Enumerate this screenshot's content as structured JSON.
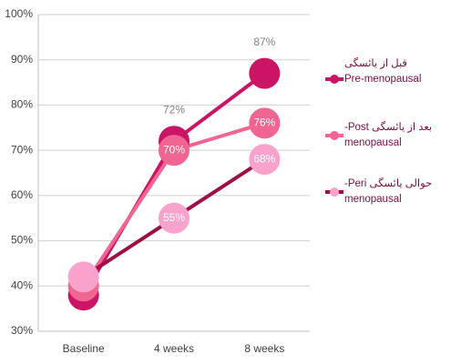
{
  "chart_data": {
    "type": "line",
    "categories": [
      "Baseline",
      "4 weeks",
      "8 weeks"
    ],
    "series": [
      {
        "name": "قبل از یائسگی\nPre-menopausal",
        "color": "#cc1466",
        "marker_color": "#cc1466",
        "values": [
          38,
          72,
          87
        ],
        "value_labels": [
          null,
          "72%",
          "87%"
        ]
      },
      {
        "name": "بعد از یائسگی Post-\nmenopausal",
        "color": "#f06592",
        "marker_color": "#f06592",
        "values": [
          40,
          70,
          76
        ],
        "value_labels": [
          null,
          "70%",
          "76%"
        ]
      },
      {
        "name": "حوالی یائسگی Peri-\nmenopausal",
        "color": "#9e0f48",
        "marker_color": "#f9a3cc",
        "values": [
          42,
          55,
          68
        ],
        "value_labels": [
          null,
          "55%",
          "68%"
        ]
      }
    ],
    "ylim": [
      30,
      100
    ],
    "yticks": [
      {
        "value": 30,
        "label": "30%"
      },
      {
        "value": 40,
        "label": "40%"
      },
      {
        "value": 50,
        "label": "50%"
      },
      {
        "value": 60,
        "label": "60%"
      },
      {
        "value": 70,
        "label": "70%"
      },
      {
        "value": 80,
        "label": "80%"
      },
      {
        "value": 90,
        "label": "90%"
      },
      {
        "value": 100,
        "label": "100%"
      }
    ],
    "grid": true
  }
}
